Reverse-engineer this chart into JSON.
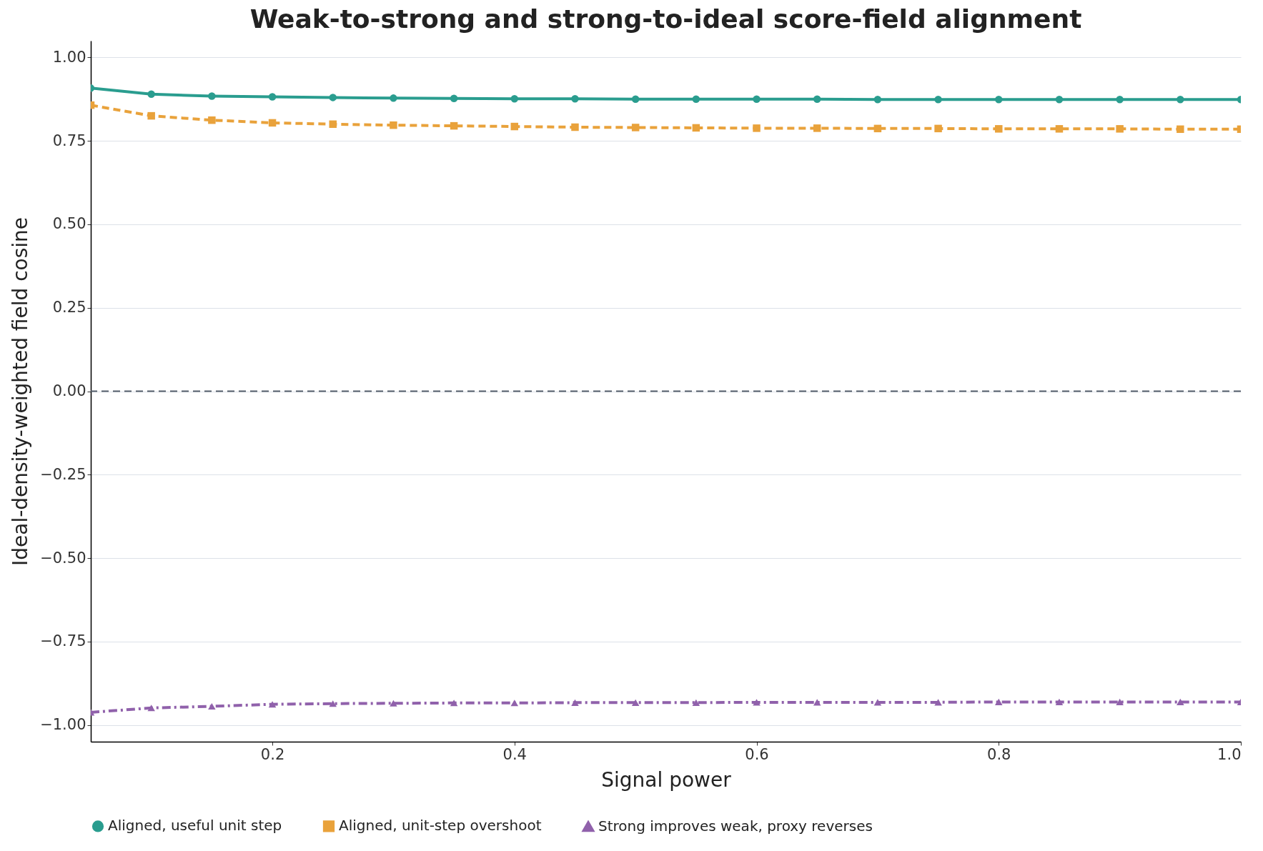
{
  "chart_data": {
    "type": "line",
    "title": "Weak-to-strong and strong-to-ideal score-field alignment",
    "xlabel": "Signal power",
    "ylabel": "Ideal-density-weighted field cosine",
    "x": [
      0.05,
      0.1,
      0.15,
      0.2,
      0.25,
      0.3,
      0.35,
      0.4,
      0.45,
      0.5,
      0.55,
      0.6,
      0.65,
      0.7,
      0.75,
      0.8,
      0.85,
      0.9,
      0.95,
      1.0
    ],
    "series": [
      {
        "name": "Aligned, useful unit step",
        "color": "#2a9d8f",
        "marker": "circle",
        "line_style": "solid",
        "values": [
          0.908,
          0.89,
          0.884,
          0.882,
          0.88,
          0.878,
          0.877,
          0.876,
          0.876,
          0.875,
          0.875,
          0.875,
          0.875,
          0.874,
          0.874,
          0.874,
          0.874,
          0.874,
          0.874,
          0.874
        ]
      },
      {
        "name": "Aligned, unit-step overshoot",
        "color": "#e9a23b",
        "marker": "square",
        "line_style": "dashed",
        "values": [
          0.857,
          0.825,
          0.812,
          0.804,
          0.8,
          0.797,
          0.795,
          0.793,
          0.791,
          0.79,
          0.789,
          0.788,
          0.788,
          0.787,
          0.787,
          0.786,
          0.786,
          0.786,
          0.785,
          0.785
        ]
      },
      {
        "name": "Strong improves weak, proxy reverses",
        "color": "#9061ab",
        "marker": "triangle",
        "line_style": "dashdot",
        "values": [
          -0.962,
          -0.949,
          -0.944,
          -0.938,
          -0.936,
          -0.935,
          -0.934,
          -0.934,
          -0.933,
          -0.933,
          -0.933,
          -0.932,
          -0.932,
          -0.932,
          -0.932,
          -0.931,
          -0.931,
          -0.931,
          -0.931,
          -0.931
        ]
      }
    ],
    "xlim": [
      0.05,
      1.0
    ],
    "xticks": [
      0.2,
      0.4,
      0.6,
      0.8,
      {
        "value": 1.0,
        "label": "1.0"
      }
    ],
    "ylim": [
      -1.05,
      1.05
    ],
    "yticks": [
      {
        "value": -1.0,
        "label": "−1.00"
      },
      {
        "value": -0.75,
        "label": "−0.75"
      },
      {
        "value": -0.5,
        "label": "−0.50"
      },
      {
        "value": -0.25,
        "label": "−0.25"
      },
      {
        "value": 0.0,
        "label": "0.00"
      },
      0.25,
      {
        "value": 0.5,
        "label": "0.50"
      },
      0.75,
      {
        "value": 1.0,
        "label": "1.00"
      }
    ],
    "ref_lines": [
      {
        "axis": "y",
        "value": 0,
        "color": "#555e6b",
        "line_style": "dashed"
      }
    ],
    "grid": "y",
    "legend": "bottom"
  }
}
